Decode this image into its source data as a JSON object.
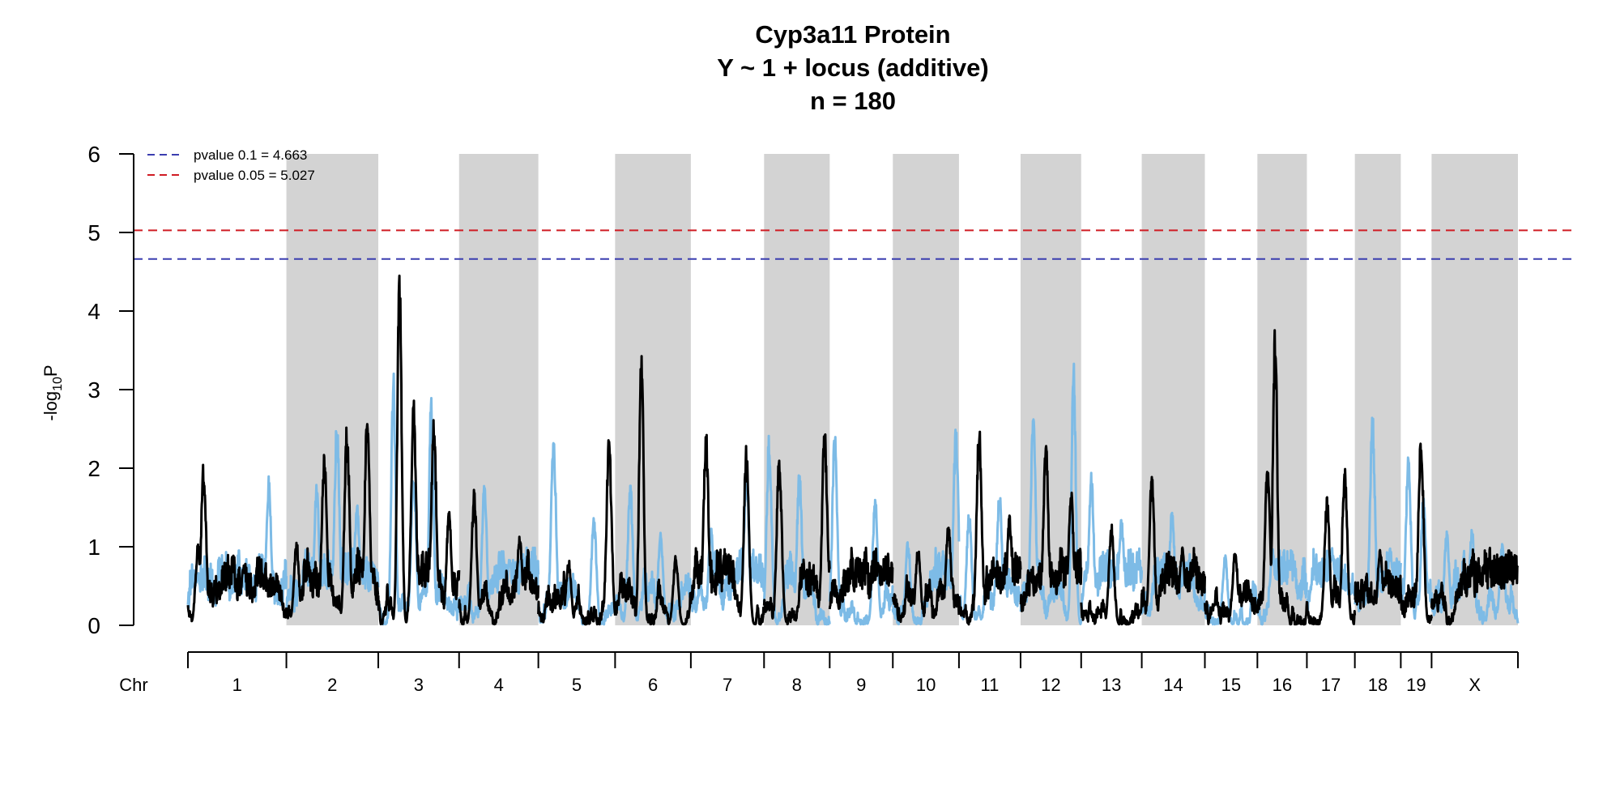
{
  "chart_data": {
    "type": "line",
    "title_lines": [
      "Cyp3a11 Protein",
      "Y ~ 1 + locus (additive)",
      "n = 180"
    ],
    "ylabel": {
      "prefix": "-log",
      "sub": "10",
      "suffix": "P"
    },
    "xaxis_label": "Chr",
    "ylim": [
      0,
      6
    ],
    "yticks": [
      "0",
      "1",
      "2",
      "3",
      "4",
      "5",
      "6"
    ],
    "chromosomes": [
      {
        "name": "1",
        "length": 195
      },
      {
        "name": "2",
        "length": 182
      },
      {
        "name": "3",
        "length": 160
      },
      {
        "name": "4",
        "length": 157
      },
      {
        "name": "5",
        "length": 152
      },
      {
        "name": "6",
        "length": 150
      },
      {
        "name": "7",
        "length": 145
      },
      {
        "name": "8",
        "length": 130
      },
      {
        "name": "9",
        "length": 125
      },
      {
        "name": "10",
        "length": 131
      },
      {
        "name": "11",
        "length": 122
      },
      {
        "name": "12",
        "length": 120
      },
      {
        "name": "13",
        "length": 120
      },
      {
        "name": "14",
        "length": 125
      },
      {
        "name": "15",
        "length": 104
      },
      {
        "name": "16",
        "length": 98
      },
      {
        "name": "17",
        "length": 95
      },
      {
        "name": "18",
        "length": 91
      },
      {
        "name": "19",
        "length": 61
      },
      {
        "name": "X",
        "length": 171
      }
    ],
    "shaded_chromosomes": [
      "2",
      "4",
      "6",
      "8",
      "10",
      "12",
      "14",
      "16",
      "18",
      "X"
    ],
    "thresholds": [
      {
        "label": "pvalue 0.1 = 4.663",
        "value": 4.663,
        "color": "#3b3eb0"
      },
      {
        "label": "pvalue 0.05 = 5.027",
        "value": 5.027,
        "color": "#d01c24"
      }
    ],
    "series": [
      {
        "color": "#000000",
        "peaks": [
          {
            "chr": "1",
            "pos": 31,
            "value": 2.1
          },
          {
            "chr": "1",
            "pos": 20,
            "value": 1.05
          },
          {
            "chr": "1",
            "pos": 110,
            "value": 0.75
          },
          {
            "chr": "2",
            "pos": 75,
            "value": 2.25
          },
          {
            "chr": "2",
            "pos": 120,
            "value": 2.6
          },
          {
            "chr": "2",
            "pos": 160,
            "value": 2.75
          },
          {
            "chr": "2",
            "pos": 20,
            "value": 1.1
          },
          {
            "chr": "3",
            "pos": 42,
            "value": 4.65
          },
          {
            "chr": "3",
            "pos": 70,
            "value": 2.9
          },
          {
            "chr": "3",
            "pos": 110,
            "value": 2.7
          },
          {
            "chr": "3",
            "pos": 140,
            "value": 1.5
          },
          {
            "chr": "4",
            "pos": 30,
            "value": 1.75
          },
          {
            "chr": "4",
            "pos": 120,
            "value": 1.2
          },
          {
            "chr": "5",
            "pos": 140,
            "value": 2.45
          },
          {
            "chr": "5",
            "pos": 60,
            "value": 0.85
          },
          {
            "chr": "6",
            "pos": 52,
            "value": 3.6
          },
          {
            "chr": "6",
            "pos": 120,
            "value": 0.9
          },
          {
            "chr": "7",
            "pos": 30,
            "value": 2.5
          },
          {
            "chr": "7",
            "pos": 110,
            "value": 2.3
          },
          {
            "chr": "8",
            "pos": 30,
            "value": 2.2
          },
          {
            "chr": "8",
            "pos": 120,
            "value": 2.6
          },
          {
            "chr": "9",
            "pos": 60,
            "value": 0.3
          },
          {
            "chr": "10",
            "pos": 50,
            "value": 1.0
          },
          {
            "chr": "10",
            "pos": 110,
            "value": 1.35
          },
          {
            "chr": "11",
            "pos": 40,
            "value": 2.6
          },
          {
            "chr": "11",
            "pos": 100,
            "value": 1.4
          },
          {
            "chr": "12",
            "pos": 50,
            "value": 2.4
          },
          {
            "chr": "12",
            "pos": 100,
            "value": 1.8
          },
          {
            "chr": "13",
            "pos": 60,
            "value": 1.3
          },
          {
            "chr": "14",
            "pos": 20,
            "value": 1.95
          },
          {
            "chr": "14",
            "pos": 80,
            "value": 1.0
          },
          {
            "chr": "15",
            "pos": 60,
            "value": 1.0
          },
          {
            "chr": "16",
            "pos": 35,
            "value": 3.9
          },
          {
            "chr": "16",
            "pos": 20,
            "value": 2.1
          },
          {
            "chr": "17",
            "pos": 40,
            "value": 1.65
          },
          {
            "chr": "17",
            "pos": 75,
            "value": 2.05
          },
          {
            "chr": "18",
            "pos": 50,
            "value": 1.0
          },
          {
            "chr": "19",
            "pos": 40,
            "value": 2.5
          },
          {
            "chr": "X",
            "pos": 100,
            "value": 0.35
          }
        ]
      },
      {
        "color": "#7dbbe6",
        "peaks": [
          {
            "chr": "1",
            "pos": 160,
            "value": 1.9
          },
          {
            "chr": "1",
            "pos": 20,
            "value": 0.7
          },
          {
            "chr": "2",
            "pos": 100,
            "value": 2.65
          },
          {
            "chr": "2",
            "pos": 60,
            "value": 1.8
          },
          {
            "chr": "2",
            "pos": 140,
            "value": 1.6
          },
          {
            "chr": "3",
            "pos": 30,
            "value": 3.25
          },
          {
            "chr": "3",
            "pos": 105,
            "value": 3.1
          },
          {
            "chr": "3",
            "pos": 70,
            "value": 2.0
          },
          {
            "chr": "4",
            "pos": 50,
            "value": 1.8
          },
          {
            "chr": "4",
            "pos": 100,
            "value": 0.9
          },
          {
            "chr": "5",
            "pos": 30,
            "value": 2.5
          },
          {
            "chr": "5",
            "pos": 110,
            "value": 1.4
          },
          {
            "chr": "6",
            "pos": 30,
            "value": 1.85
          },
          {
            "chr": "6",
            "pos": 90,
            "value": 1.2
          },
          {
            "chr": "7",
            "pos": 40,
            "value": 1.3
          },
          {
            "chr": "7",
            "pos": 110,
            "value": 2.0
          },
          {
            "chr": "8",
            "pos": 10,
            "value": 2.45
          },
          {
            "chr": "8",
            "pos": 70,
            "value": 2.0
          },
          {
            "chr": "9",
            "pos": 10,
            "value": 2.5
          },
          {
            "chr": "9",
            "pos": 90,
            "value": 1.65
          },
          {
            "chr": "10",
            "pos": 30,
            "value": 1.1
          },
          {
            "chr": "10",
            "pos": 125,
            "value": 2.6
          },
          {
            "chr": "11",
            "pos": 20,
            "value": 1.5
          },
          {
            "chr": "11",
            "pos": 80,
            "value": 1.75
          },
          {
            "chr": "12",
            "pos": 25,
            "value": 2.7
          },
          {
            "chr": "12",
            "pos": 105,
            "value": 3.4
          },
          {
            "chr": "13",
            "pos": 20,
            "value": 1.95
          },
          {
            "chr": "13",
            "pos": 80,
            "value": 1.4
          },
          {
            "chr": "14",
            "pos": 60,
            "value": 1.5
          },
          {
            "chr": "15",
            "pos": 40,
            "value": 0.9
          },
          {
            "chr": "16",
            "pos": 30,
            "value": 1.0
          },
          {
            "chr": "17",
            "pos": 50,
            "value": 1.0
          },
          {
            "chr": "18",
            "pos": 35,
            "value": 2.7
          },
          {
            "chr": "18",
            "pos": 70,
            "value": 1.0
          },
          {
            "chr": "19",
            "pos": 15,
            "value": 2.2
          },
          {
            "chr": "19",
            "pos": 45,
            "value": 1.7
          },
          {
            "chr": "X",
            "pos": 30,
            "value": 1.2
          },
          {
            "chr": "X",
            "pos": 80,
            "value": 1.25
          },
          {
            "chr": "X",
            "pos": 140,
            "value": 1.1
          }
        ]
      }
    ]
  }
}
